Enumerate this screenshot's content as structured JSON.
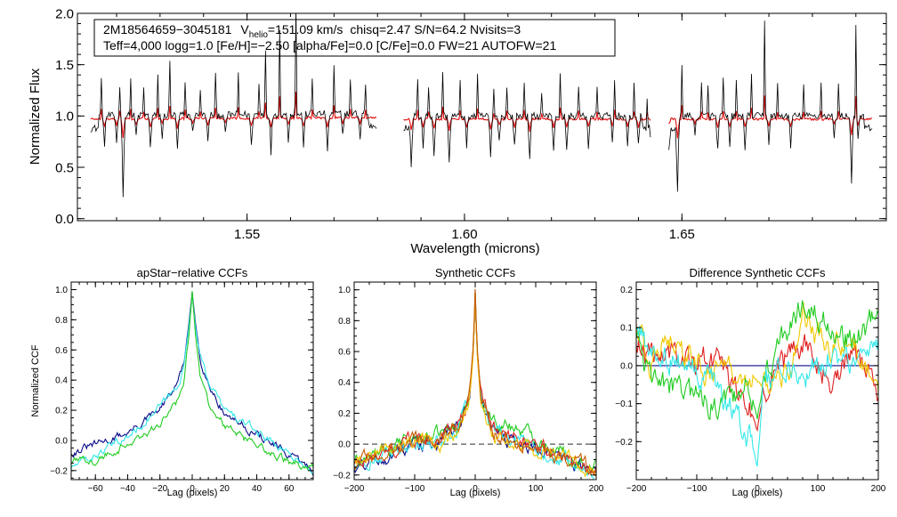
{
  "colors": {
    "background": "#ffffff",
    "axis": "#000000",
    "spectrum_observed": "#000000",
    "spectrum_model": "#e01010",
    "visit_dark": "#0a0a8a",
    "visit_green": "#22cc22",
    "visit_cyan": "#33e8e8",
    "visit_red": "#e02020",
    "visit_yellow": "#f0c800",
    "visit_orange": "#c85a00"
  },
  "chart_data": [
    {
      "id": "spectrum",
      "type": "line",
      "title": "",
      "xlabel": "Wavelength (microns)",
      "ylabel": "Normalized Flux",
      "xlim": [
        1.511,
        1.697
      ],
      "ylim": [
        -0.02,
        2.0
      ],
      "xticks": [
        1.55,
        1.6,
        1.65
      ],
      "xtick_labels": [
        "1.55",
        "1.60",
        "1.65"
      ],
      "yticks": [
        0.0,
        0.5,
        1.0,
        1.5,
        2.0
      ],
      "ytick_labels": [
        "0.0",
        "0.5",
        "1.0",
        "1.5",
        "2.0"
      ],
      "annotation": {
        "star": "2M18564659−3045181",
        "vhelio_label": "V",
        "vhelio_sub": "helio",
        "vhelio_value": "=151.09 km/s",
        "stats": "chisq=2.47  S/N=64.2  Nvisits=3",
        "line2": "Teff=4,000 logg=1.0 [Fe/H]=−2.50 [alpha/Fe]=0.0 [C/Fe]=0.0 FW=21 AUTOFW=21"
      },
      "chips": [
        [
          1.514,
          1.58
        ],
        [
          1.586,
          1.643
        ],
        [
          1.647,
          1.694
        ]
      ],
      "series": [
        {
          "name": "observed",
          "baseline": 1.0,
          "noise": 0.035
        },
        {
          "name": "model",
          "baseline": 0.97,
          "noise": 0.012
        }
      ],
      "absorption_lines": [
        [
          1.5172,
          -0.28
        ],
        [
          1.52,
          -0.25
        ],
        [
          1.5215,
          -0.78
        ],
        [
          1.5245,
          -0.2
        ],
        [
          1.5278,
          -0.3
        ],
        [
          1.5305,
          -0.22
        ],
        [
          1.534,
          -0.35
        ],
        [
          1.5375,
          -0.18
        ],
        [
          1.541,
          -0.28
        ],
        [
          1.545,
          -0.2
        ],
        [
          1.551,
          -0.32
        ],
        [
          1.5555,
          -0.38
        ],
        [
          1.5595,
          -0.25
        ],
        [
          1.563,
          -0.3
        ],
        [
          1.5685,
          -0.4
        ],
        [
          1.572,
          -0.22
        ],
        [
          1.576,
          -0.25
        ],
        [
          1.5878,
          -0.42
        ],
        [
          1.5905,
          -0.3
        ],
        [
          1.593,
          -0.38
        ],
        [
          1.5965,
          -0.45
        ],
        [
          1.6005,
          -0.3
        ],
        [
          1.606,
          -0.4
        ],
        [
          1.608,
          -0.25
        ],
        [
          1.6115,
          -0.3
        ],
        [
          1.615,
          -0.45
        ],
        [
          1.6205,
          -0.32
        ],
        [
          1.6235,
          -0.35
        ],
        [
          1.6285,
          -0.3
        ],
        [
          1.634,
          -0.25
        ],
        [
          1.6375,
          -0.33
        ],
        [
          1.64,
          -0.3
        ],
        [
          1.643,
          -0.22
        ],
        [
          1.647,
          -0.22
        ],
        [
          1.649,
          -0.75
        ],
        [
          1.653,
          -0.2
        ],
        [
          1.6582,
          -0.35
        ],
        [
          1.661,
          -0.3
        ],
        [
          1.6645,
          -0.3
        ],
        [
          1.67,
          -0.25
        ],
        [
          1.675,
          -0.3
        ],
        [
          1.685,
          -0.2
        ],
        [
          1.689,
          -0.65
        ],
        [
          1.6905,
          -0.25
        ]
      ],
      "emission_spikes": [
        [
          1.5165,
          0.4
        ],
        [
          1.5208,
          0.35
        ],
        [
          1.5232,
          0.4
        ],
        [
          1.5262,
          0.3
        ],
        [
          1.5295,
          0.38
        ],
        [
          1.5322,
          0.6
        ],
        [
          1.5358,
          0.35
        ],
        [
          1.5392,
          0.3
        ],
        [
          1.5428,
          0.45
        ],
        [
          1.548,
          0.4
        ],
        [
          1.5528,
          0.35
        ],
        [
          1.5542,
          0.75
        ],
        [
          1.5575,
          0.8
        ],
        [
          1.5612,
          1.2
        ],
        [
          1.565,
          0.35
        ],
        [
          1.57,
          0.45
        ],
        [
          1.5738,
          0.38
        ],
        [
          1.5772,
          0.32
        ],
        [
          1.5892,
          0.45
        ],
        [
          1.5918,
          0.33
        ],
        [
          1.595,
          0.45
        ],
        [
          1.599,
          0.32
        ],
        [
          1.603,
          0.38
        ],
        [
          1.6068,
          0.28
        ],
        [
          1.6098,
          0.35
        ],
        [
          1.6138,
          0.38
        ],
        [
          1.6178,
          0.3
        ],
        [
          1.622,
          0.4
        ],
        [
          1.6262,
          0.35
        ],
        [
          1.6305,
          0.3
        ],
        [
          1.6345,
          0.35
        ],
        [
          1.639,
          0.3
        ],
        [
          1.642,
          0.3
        ],
        [
          1.65,
          0.5
        ],
        [
          1.6545,
          0.3
        ],
        [
          1.656,
          0.28
        ],
        [
          1.6595,
          0.35
        ],
        [
          1.6625,
          0.35
        ],
        [
          1.666,
          0.4
        ],
        [
          1.669,
          0.95
        ],
        [
          1.672,
          0.3
        ],
        [
          1.678,
          0.3
        ],
        [
          1.682,
          0.35
        ],
        [
          1.686,
          0.3
        ],
        [
          1.69,
          0.9
        ]
      ]
    },
    {
      "id": "apstar-ccf",
      "type": "line",
      "title": "apStar−relative CCFs",
      "xlabel": "Lag (pixels)",
      "ylabel": "Normalized CCF",
      "xlim": [
        -75,
        75
      ],
      "ylim": [
        -0.26,
        1.05
      ],
      "xticks": [
        -60,
        -40,
        -20,
        0,
        20,
        40,
        60
      ],
      "xtick_labels": [
        "−60",
        "−40",
        "−20",
        "0",
        "20",
        "40",
        "60"
      ],
      "yticks": [
        -0.2,
        0.0,
        0.2,
        0.4,
        0.6,
        0.8,
        1.0
      ],
      "ytick_labels": [
        "−0.2",
        "0.0",
        "0.2",
        "0.4",
        "0.6",
        "0.8",
        "1.0"
      ],
      "series": [
        {
          "name": "visit-dark",
          "color_key": "visit_dark",
          "x": [
            -75,
            -60,
            -40,
            -20,
            -10,
            -5,
            -2,
            0,
            2,
            5,
            10,
            20,
            40,
            60,
            75
          ],
          "y": [
            -0.08,
            -0.03,
            0.05,
            0.2,
            0.36,
            0.52,
            0.78,
            0.98,
            0.78,
            0.55,
            0.38,
            0.18,
            0.04,
            -0.1,
            -0.2
          ]
        },
        {
          "name": "visit-cyan",
          "color_key": "visit_cyan",
          "x": [
            -75,
            -60,
            -40,
            -20,
            -10,
            -5,
            -2,
            0,
            2,
            5,
            10,
            20,
            40,
            60,
            75
          ],
          "y": [
            -0.18,
            -0.1,
            0.02,
            0.22,
            0.34,
            0.5,
            0.76,
            0.97,
            0.76,
            0.55,
            0.4,
            0.2,
            0.06,
            -0.08,
            -0.22
          ]
        },
        {
          "name": "visit-green",
          "color_key": "visit_green",
          "x": [
            -75,
            -60,
            -40,
            -20,
            -10,
            -5,
            -2,
            0,
            2,
            5,
            10,
            20,
            40,
            60,
            75
          ],
          "y": [
            -0.15,
            -0.13,
            -0.02,
            0.1,
            0.25,
            0.42,
            0.7,
            0.99,
            0.7,
            0.42,
            0.25,
            0.1,
            -0.04,
            -0.14,
            -0.17
          ]
        }
      ]
    },
    {
      "id": "synthetic-ccf",
      "type": "line",
      "title": "Synthetic CCFs",
      "xlabel": "Lag (pixels)",
      "ylabel": "",
      "xlim": [
        -200,
        200
      ],
      "ylim": [
        -0.23,
        1.05
      ],
      "xticks": [
        -200,
        -100,
        0,
        100,
        200
      ],
      "xtick_labels": [
        "−200",
        "−100",
        "0",
        "100",
        "200"
      ],
      "yticks": [
        -0.2,
        0.0,
        0.2,
        0.4,
        0.6,
        0.8,
        1.0
      ],
      "ytick_labels": [
        "−0.2",
        "0.0",
        "0.2",
        "0.4",
        "0.6",
        "0.8",
        "1.0"
      ],
      "reference_line": {
        "y": 0.0,
        "style": "dashed"
      },
      "series": [
        {
          "name": "visit-dark",
          "color_key": "visit_dark",
          "x": [
            -200,
            -150,
            -100,
            -60,
            -30,
            -10,
            -3,
            0,
            3,
            10,
            30,
            60,
            100,
            150,
            200
          ],
          "y": [
            -0.15,
            -0.08,
            0.0,
            0.02,
            0.1,
            0.28,
            0.62,
            0.99,
            0.62,
            0.28,
            0.08,
            0.02,
            -0.02,
            -0.1,
            -0.18
          ]
        },
        {
          "name": "visit-green",
          "color_key": "visit_green",
          "x": [
            -200,
            -150,
            -100,
            -60,
            -30,
            -10,
            -3,
            0,
            3,
            10,
            30,
            60,
            100,
            150,
            200
          ],
          "y": [
            -0.12,
            -0.05,
            0.04,
            0.06,
            0.12,
            0.3,
            0.62,
            0.98,
            0.62,
            0.3,
            0.15,
            0.12,
            0.05,
            -0.08,
            -0.14
          ]
        },
        {
          "name": "visit-cyan",
          "color_key": "visit_cyan",
          "x": [
            -200,
            -150,
            -100,
            -60,
            -30,
            -10,
            -3,
            0,
            3,
            10,
            30,
            60,
            100,
            150,
            200
          ],
          "y": [
            -0.16,
            -0.07,
            0.0,
            0.03,
            0.1,
            0.27,
            0.6,
            0.98,
            0.6,
            0.27,
            0.08,
            0.03,
            -0.02,
            -0.12,
            -0.2
          ]
        },
        {
          "name": "visit-red",
          "color_key": "visit_red",
          "x": [
            -200,
            -150,
            -100,
            -60,
            -30,
            -10,
            -3,
            0,
            3,
            10,
            30,
            60,
            100,
            150,
            200
          ],
          "y": [
            -0.12,
            -0.04,
            0.02,
            0.05,
            0.14,
            0.3,
            0.6,
            0.97,
            0.6,
            0.3,
            0.1,
            0.06,
            0.0,
            -0.1,
            -0.16
          ]
        },
        {
          "name": "visit-yellow",
          "color_key": "visit_yellow",
          "x": [
            -200,
            -150,
            -100,
            -60,
            -30,
            -10,
            -3,
            0,
            3,
            10,
            30,
            60,
            100,
            150,
            200
          ],
          "y": [
            -0.1,
            -0.02,
            0.02,
            0.0,
            0.08,
            0.26,
            0.58,
            0.98,
            0.58,
            0.26,
            0.06,
            0.0,
            -0.04,
            -0.1,
            -0.16
          ]
        },
        {
          "name": "visit-orange",
          "color_key": "visit_orange",
          "x": [
            -200,
            -150,
            -100,
            -60,
            -30,
            -10,
            -3,
            0,
            3,
            10,
            30,
            60,
            100,
            150,
            200
          ],
          "y": [
            -0.14,
            -0.05,
            0.01,
            0.03,
            0.1,
            0.3,
            0.64,
            1.0,
            0.64,
            0.3,
            0.08,
            0.02,
            -0.03,
            -0.12,
            -0.17
          ]
        }
      ]
    },
    {
      "id": "difference-ccf",
      "type": "line",
      "title": "Difference Synthetic CCFs",
      "xlabel": "Lag (pixels)",
      "ylabel": "",
      "xlim": [
        -200,
        200
      ],
      "ylim": [
        -0.3,
        0.22
      ],
      "xticks": [
        -200,
        -100,
        0,
        100,
        200
      ],
      "xtick_labels": [
        "−200",
        "−100",
        "0",
        "100",
        "200"
      ],
      "yticks": [
        -0.2,
        -0.1,
        0.0,
        0.1,
        0.2
      ],
      "ytick_labels": [
        "−0.2",
        "−0.1",
        "0.0",
        "0.1",
        "0.2"
      ],
      "reference_line": {
        "y": 0.0,
        "style": "solid",
        "color_key": "visit_dark"
      },
      "series": [
        {
          "name": "visit-red",
          "color_key": "visit_red",
          "x": [
            -200,
            -180,
            -150,
            -120,
            -80,
            -40,
            -10,
            0,
            10,
            40,
            80,
            120,
            160,
            200
          ],
          "y": [
            0.06,
            0.03,
            0.04,
            0.0,
            0.02,
            -0.05,
            -0.12,
            -0.17,
            -0.08,
            0.0,
            0.06,
            -0.03,
            0.03,
            -0.06
          ]
        },
        {
          "name": "visit-yellow",
          "color_key": "visit_yellow",
          "x": [
            -200,
            -180,
            -150,
            -120,
            -80,
            -40,
            -10,
            0,
            10,
            40,
            80,
            120,
            160,
            200
          ],
          "y": [
            0.12,
            0.0,
            0.1,
            0.02,
            0.0,
            -0.02,
            -0.02,
            -0.04,
            -0.06,
            -0.05,
            0.12,
            0.04,
            0.05,
            -0.03
          ]
        },
        {
          "name": "visit-green",
          "color_key": "visit_green",
          "x": [
            -200,
            -180,
            -150,
            -120,
            -80,
            -40,
            -10,
            0,
            10,
            40,
            80,
            120,
            160,
            200
          ],
          "y": [
            0.08,
            -0.03,
            -0.05,
            -0.08,
            -0.1,
            -0.08,
            -0.06,
            -0.14,
            -0.05,
            0.08,
            0.18,
            0.1,
            0.08,
            0.12
          ]
        },
        {
          "name": "visit-cyan",
          "color_key": "visit_cyan",
          "x": [
            -200,
            -180,
            -150,
            -120,
            -80,
            -40,
            -10,
            0,
            10,
            40,
            80,
            120,
            160,
            200
          ],
          "y": [
            0.1,
            0.04,
            0.02,
            0.0,
            -0.05,
            -0.12,
            -0.2,
            -0.27,
            -0.06,
            0.0,
            -0.02,
            0.01,
            0.02,
            0.05
          ]
        }
      ]
    }
  ]
}
